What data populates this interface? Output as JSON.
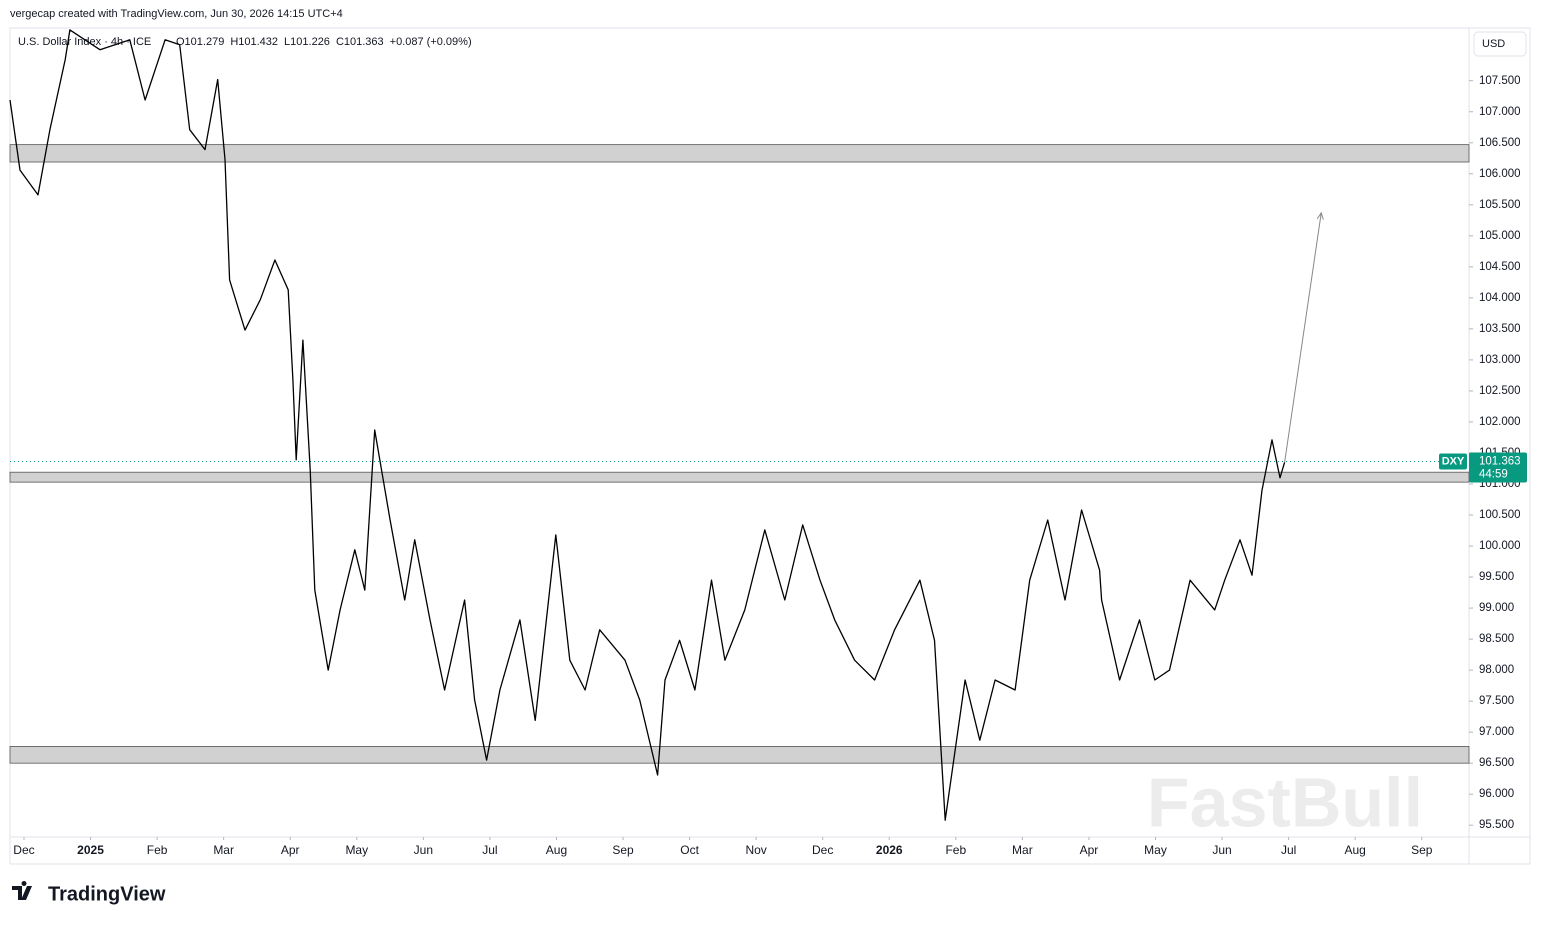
{
  "header": {
    "credit": "vergecap created with TradingView.com, Jun 30, 2026 14:15 UTC+4",
    "logo": "TradingView",
    "watermark": "FastBull"
  },
  "chart_data": {
    "type": "line",
    "title": "U.S. Dollar Index · 4h · ICE",
    "ohlc": [
      "O101.279",
      "H101.432",
      "L101.226",
      "C101.363"
    ],
    "change": "+0.087 (+0.09%)",
    "currency": "USD",
    "symbol": "DXY",
    "last": {
      "value": 101.363,
      "label": "101.363"
    },
    "countdown": "44:59",
    "xlim": [
      -0.21,
      21.71
    ],
    "ylim": [
      95.31,
      108.35
    ],
    "xticks": [
      {
        "value": 0,
        "label": "Dec"
      },
      {
        "value": 1,
        "label": "2025"
      },
      {
        "value": 2,
        "label": "Feb"
      },
      {
        "value": 3,
        "label": "Mar"
      },
      {
        "value": 4,
        "label": "Apr"
      },
      {
        "value": 5,
        "label": "May"
      },
      {
        "value": 6,
        "label": "Jun"
      },
      {
        "value": 7,
        "label": "Jul"
      },
      {
        "value": 8,
        "label": "Aug"
      },
      {
        "value": 9,
        "label": "Sep"
      },
      {
        "value": 10,
        "label": "Oct"
      },
      {
        "value": 11,
        "label": "Nov"
      },
      {
        "value": 12,
        "label": "Dec"
      },
      {
        "value": 13,
        "label": "2026"
      },
      {
        "value": 14,
        "label": "Feb"
      },
      {
        "value": 15,
        "label": "Mar"
      },
      {
        "value": 16,
        "label": "Apr"
      },
      {
        "value": 17,
        "label": "May"
      },
      {
        "value": 18,
        "label": "Jun"
      },
      {
        "value": 19,
        "label": "Jul"
      },
      {
        "value": 20,
        "label": "Aug"
      },
      {
        "value": 21,
        "label": "Sep"
      }
    ],
    "yticks": [
      {
        "value": 95.5,
        "label": "95.500"
      },
      {
        "value": 96,
        "label": "96.000"
      },
      {
        "value": 96.5,
        "label": "96.500"
      },
      {
        "value": 97,
        "label": "97.000"
      },
      {
        "value": 97.5,
        "label": "97.500"
      },
      {
        "value": 98,
        "label": "98.000"
      },
      {
        "value": 98.5,
        "label": "98.500"
      },
      {
        "value": 99,
        "label": "99.000"
      },
      {
        "value": 99.5,
        "label": "99.500"
      },
      {
        "value": 100,
        "label": "100.000"
      },
      {
        "value": 100.5,
        "label": "100.500"
      },
      {
        "value": 101,
        "label": "101.000"
      },
      {
        "value": 101.5,
        "label": "101.500"
      },
      {
        "value": 102,
        "label": "102.000"
      },
      {
        "value": 102.5,
        "label": "102.500"
      },
      {
        "value": 103,
        "label": "103.000"
      },
      {
        "value": 103.5,
        "label": "103.500"
      },
      {
        "value": 104,
        "label": "104.000"
      },
      {
        "value": 104.5,
        "label": "104.500"
      },
      {
        "value": 105,
        "label": "105.000"
      },
      {
        "value": 105.5,
        "label": "105.500"
      },
      {
        "value": 106,
        "label": "106.000"
      },
      {
        "value": 106.5,
        "label": "106.500"
      },
      {
        "value": 107,
        "label": "107.000"
      },
      {
        "value": 107.5,
        "label": "107.500"
      }
    ],
    "zones": [
      [
        106.19,
        106.47
      ],
      [
        101.03,
        101.19
      ],
      [
        96.5,
        96.77
      ]
    ],
    "projection": {
      "x": [
        18.94,
        19.49
      ],
      "values": [
        101.35,
        105.37
      ],
      "color": "#888888"
    },
    "series": [
      {
        "name": "DXY",
        "color": "#000000",
        "x": [
          -0.21,
          -0.06,
          0.21,
          0.39,
          0.62,
          0.69,
          1.14,
          1.59,
          1.82,
          2.12,
          2.34,
          2.49,
          2.72,
          2.91,
          3.02,
          3.09,
          3.32,
          3.55,
          3.77,
          3.97,
          4.04,
          4.09,
          4.19,
          4.3,
          4.37,
          4.57,
          4.75,
          4.97,
          5.12,
          5.27,
          5.5,
          5.72,
          5.87,
          6.1,
          6.32,
          6.62,
          6.77,
          6.95,
          7.15,
          7.45,
          7.68,
          7.99,
          8.2,
          8.43,
          8.65,
          9.03,
          9.25,
          9.52,
          9.63,
          9.85,
          10.08,
          10.33,
          10.53,
          10.83,
          11.13,
          11.43,
          11.7,
          11.96,
          12.18,
          12.48,
          12.78,
          13.08,
          13.46,
          13.68,
          13.84,
          14.14,
          14.36,
          14.59,
          14.89,
          15.11,
          15.38,
          15.64,
          15.89,
          16.16,
          16.19,
          16.46,
          16.76,
          16.99,
          17.21,
          17.52,
          17.89,
          18.04,
          18.27,
          18.45,
          18.6,
          18.75,
          18.87,
          18.94
        ],
        "values": [
          107.19,
          106.06,
          105.66,
          106.71,
          107.84,
          108.32,
          108.0,
          108.16,
          107.19,
          108.16,
          108.08,
          106.71,
          106.39,
          107.52,
          106.23,
          104.29,
          103.48,
          103.97,
          104.61,
          104.13,
          102.68,
          101.39,
          103.32,
          101.23,
          99.29,
          98.0,
          98.97,
          99.94,
          99.29,
          101.87,
          100.42,
          99.13,
          100.1,
          98.81,
          97.68,
          99.13,
          97.52,
          96.55,
          97.68,
          98.81,
          97.19,
          100.18,
          98.16,
          97.68,
          98.65,
          98.16,
          97.52,
          96.31,
          97.84,
          98.48,
          97.68,
          99.45,
          98.16,
          98.97,
          100.26,
          99.13,
          100.34,
          99.45,
          98.81,
          98.16,
          97.84,
          98.65,
          99.45,
          98.48,
          95.58,
          97.84,
          96.87,
          97.84,
          97.68,
          99.45,
          100.42,
          99.13,
          100.58,
          99.61,
          99.13,
          97.84,
          98.81,
          97.84,
          98.0,
          99.45,
          98.97,
          99.45,
          100.1,
          99.53,
          100.9,
          101.71,
          101.1,
          101.35
        ]
      }
    ]
  }
}
